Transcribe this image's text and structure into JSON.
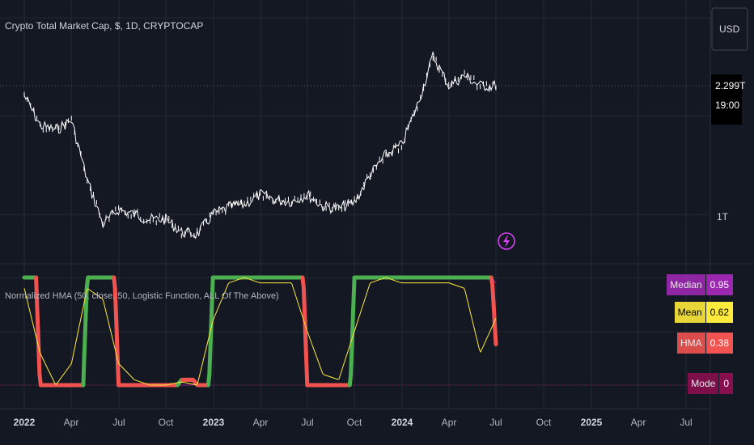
{
  "header": {
    "symbol_title": "Crypto Total Market Cap, $, 1D, CRYPTOCAP",
    "currency_button": "USD"
  },
  "price_scale": {
    "last_price": "2.299T",
    "countdown": "19:00",
    "level_label": "1T"
  },
  "indicator": {
    "title": "Normalized HMA (50, close, 50, Logistic Function, ALL Of The Above)",
    "badges": [
      {
        "name": "Median",
        "value": "0.95",
        "color": "#9c27b0",
        "text_color": "#ffffff"
      },
      {
        "name": "Mean",
        "value": "0.62",
        "color": "#ffeb3b",
        "text_color": "#000000"
      },
      {
        "name": "HMA",
        "value": "0.38",
        "color": "#f05350",
        "text_color": "#ffffff"
      },
      {
        "name": "Mode",
        "value": "0",
        "color": "#880e4f",
        "text_color": "#ffffff"
      }
    ]
  },
  "time_axis": {
    "ticks": [
      {
        "label": "2022",
        "bold": true
      },
      {
        "label": "Apr",
        "bold": false
      },
      {
        "label": "Jul",
        "bold": false
      },
      {
        "label": "Oct",
        "bold": false
      },
      {
        "label": "2023",
        "bold": true
      },
      {
        "label": "Apr",
        "bold": false
      },
      {
        "label": "Jul",
        "bold": false
      },
      {
        "label": "Oct",
        "bold": false
      },
      {
        "label": "2024",
        "bold": true
      },
      {
        "label": "Apr",
        "bold": false
      },
      {
        "label": "Jul",
        "bold": false
      },
      {
        "label": "Oct",
        "bold": false
      },
      {
        "label": "2025",
        "bold": true
      },
      {
        "label": "Apr",
        "bold": false
      },
      {
        "label": "Jul",
        "bold": false
      }
    ]
  },
  "colors": {
    "background": "#141823",
    "grid": "#242936",
    "price_line": "#ffffff",
    "bull": "#4caf50",
    "bear": "#f05350",
    "mean_line": "#ffeb3b",
    "median_line": "#9c27b0",
    "alert_icon": "#e040fb"
  },
  "chart_data": [
    {
      "type": "line",
      "title": "Crypto Total Market Cap, $, 1D, CRYPTOCAP",
      "x": [
        "2022-01",
        "2022-02",
        "2022-03",
        "2022-04",
        "2022-05",
        "2022-06",
        "2022-07",
        "2022-08",
        "2022-09",
        "2022-10",
        "2022-11",
        "2022-12",
        "2023-01",
        "2023-02",
        "2023-03",
        "2023-04",
        "2023-05",
        "2023-06",
        "2023-07",
        "2023-08",
        "2023-09",
        "2023-10",
        "2023-11",
        "2023-12",
        "2024-01",
        "2024-02",
        "2024-03",
        "2024-04",
        "2024-05",
        "2024-06",
        "2024-07"
      ],
      "series": [
        {
          "values": [
            2.2,
            1.9,
            1.85,
            1.95,
            1.35,
            0.9,
            1.05,
            1.0,
            0.95,
            0.95,
            0.82,
            0.8,
            1.0,
            1.07,
            1.1,
            1.2,
            1.15,
            1.13,
            1.2,
            1.08,
            1.06,
            1.12,
            1.4,
            1.6,
            1.7,
            2.1,
            2.6,
            2.3,
            2.4,
            2.3,
            2.299
          ]
        }
      ],
      "ylabel": "",
      "y_last": 2.299,
      "y_level_marked": 1
    },
    {
      "type": "line",
      "title": "Normalized HMA (50, close, 50, Logistic Function, ALL Of The Above)",
      "x": [
        "2022-01",
        "2022-02",
        "2022-03",
        "2022-04",
        "2022-05",
        "2022-06",
        "2022-07",
        "2022-08",
        "2022-09",
        "2022-10",
        "2022-11",
        "2022-12",
        "2023-01",
        "2023-02",
        "2023-03",
        "2023-04",
        "2023-05",
        "2023-06",
        "2023-07",
        "2023-08",
        "2023-09",
        "2023-10",
        "2023-11",
        "2023-12",
        "2024-01",
        "2024-02",
        "2024-03",
        "2024-04",
        "2024-05",
        "2024-06",
        "2024-07"
      ],
      "ylim": [
        0,
        1
      ],
      "series": [
        {
          "name": "HMA",
          "values": [
            1,
            0,
            0,
            0,
            1,
            1,
            0,
            0,
            0,
            0,
            0.05,
            0,
            1,
            1,
            1,
            1,
            1,
            1,
            0,
            0,
            0,
            1,
            1,
            1,
            1,
            1,
            1,
            1,
            1,
            1,
            0.38
          ]
        },
        {
          "name": "Mean",
          "values": [
            0.9,
            0.3,
            0.0,
            0.2,
            0.9,
            0.8,
            0.2,
            0.05,
            0.0,
            0.0,
            0.03,
            0.0,
            0.6,
            0.95,
            1,
            0.95,
            0.95,
            0.95,
            0.5,
            0.1,
            0.05,
            0.5,
            0.95,
            1,
            0.95,
            0.95,
            0.95,
            0.95,
            0.9,
            0.3,
            0.62
          ]
        },
        {
          "name": "Median",
          "values": [
            1,
            0,
            0,
            0,
            1,
            1,
            0,
            0,
            0,
            0,
            0,
            0,
            1,
            1,
            1,
            1,
            1,
            1,
            0,
            0,
            0,
            1,
            1,
            1,
            1,
            1,
            1,
            1,
            1,
            1,
            0.95
          ]
        },
        {
          "name": "Mode",
          "values": [
            0,
            0,
            0,
            0,
            0,
            0,
            0,
            0,
            0,
            0,
            0,
            0,
            0,
            0,
            0,
            0,
            0,
            0,
            0,
            0,
            0,
            0,
            0,
            0,
            0,
            0,
            0,
            0,
            0,
            0,
            0
          ]
        }
      ]
    }
  ]
}
